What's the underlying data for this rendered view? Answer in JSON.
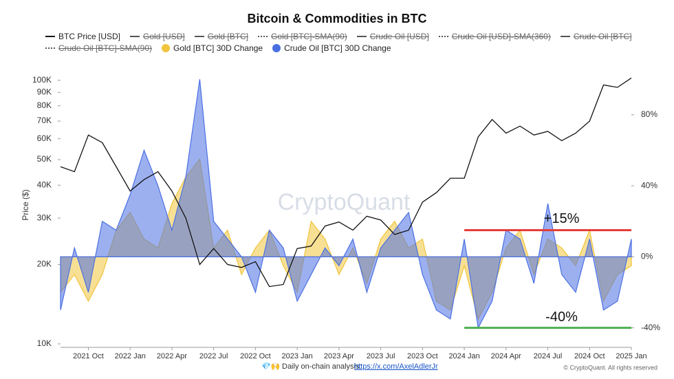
{
  "chart_data": {
    "type": "line",
    "title": "Bitcoin & Commodities in BTC",
    "y_label": "Price ($)",
    "watermark": "CryptoQuant",
    "footer_icon": "💎🙌",
    "footer_text": "Daily on-chain analysis:",
    "footer_link": "https://x.com/AxelAdlerJr",
    "copyright": "© CryptoQuant. All rights reserved",
    "x": [
      "2021-08",
      "2021-09",
      "2021-10",
      "2021-11",
      "2021-12",
      "2022-01",
      "2022-02",
      "2022-03",
      "2022-04",
      "2022-05",
      "2022-06",
      "2022-07",
      "2022-08",
      "2022-09",
      "2022-10",
      "2022-11",
      "2022-12",
      "2023-01",
      "2023-02",
      "2023-03",
      "2023-04",
      "2023-05",
      "2023-06",
      "2023-07",
      "2023-08",
      "2023-09",
      "2023-10",
      "2023-11",
      "2023-12",
      "2024-01",
      "2024-02",
      "2024-03",
      "2024-04",
      "2024-05",
      "2024-06",
      "2024-07",
      "2024-08",
      "2024-09",
      "2024-10",
      "2024-11",
      "2024-12",
      "2025-01"
    ],
    "xlim": [
      "2021-08",
      "2025-01"
    ],
    "xticks": [
      {
        "value": "2021-10",
        "label": "2021 Oct"
      },
      {
        "value": "2022-01",
        "label": "2022 Jan"
      },
      {
        "value": "2022-04",
        "label": "2022 Apr"
      },
      {
        "value": "2022-07",
        "label": "2022 Jul"
      },
      {
        "value": "2022-10",
        "label": "2022 Oct"
      },
      {
        "value": "2023-01",
        "label": "2023 Jan"
      },
      {
        "value": "2023-04",
        "label": "2023 Apr"
      },
      {
        "value": "2023-07",
        "label": "2023 Jul"
      },
      {
        "value": "2023-10",
        "label": "2023 Oct"
      },
      {
        "value": "2024-01",
        "label": "2024 Jan"
      },
      {
        "value": "2024-04",
        "label": "2024 Apr"
      },
      {
        "value": "2024-07",
        "label": "2024 Jul"
      },
      {
        "value": "2024-10",
        "label": "2024 Oct"
      },
      {
        "value": "2025-01",
        "label": "2025 Jan"
      }
    ],
    "y_scale": "log",
    "ylim": [
      9700,
      116000
    ],
    "yticks": [
      {
        "value": 10000,
        "label": "10K"
      },
      {
        "value": 20000,
        "label": "20K"
      },
      {
        "value": 30000,
        "label": "30K"
      },
      {
        "value": 40000,
        "label": "40K"
      },
      {
        "value": 50000,
        "label": "50K"
      },
      {
        "value": 60000,
        "label": "60K"
      },
      {
        "value": 70000,
        "label": "70K"
      },
      {
        "value": 80000,
        "label": "80K"
      },
      {
        "value": 90000,
        "label": "90K"
      },
      {
        "value": 100000,
        "label": "100K"
      }
    ],
    "y2lim": [
      -51,
      109
    ],
    "y2ticks": [
      {
        "value": -40,
        "label": "-40%"
      },
      {
        "value": 0,
        "label": "0%"
      },
      {
        "value": 40,
        "label": "40%"
      },
      {
        "value": 80,
        "label": "80%"
      }
    ],
    "series": [
      {
        "name": "BTC Price [USD]",
        "type": "line",
        "color": "#111111",
        "values": [
          47000,
          45000,
          62000,
          58000,
          47000,
          38000,
          42000,
          45000,
          38000,
          30000,
          20000,
          23000,
          20000,
          19500,
          20500,
          16500,
          16800,
          23000,
          23500,
          28000,
          29000,
          27000,
          30500,
          29500,
          26000,
          27000,
          34500,
          37500,
          42500,
          42500,
          61000,
          71000,
          63000,
          67000,
          62000,
          64000,
          59000,
          63000,
          70000,
          96000,
          94000,
          102000
        ]
      },
      {
        "name": "Gold [BTC] 30D Change",
        "type": "area",
        "axis": "y2",
        "color": "#f0c43c",
        "values": [
          -20,
          -10,
          -25,
          -10,
          15,
          25,
          10,
          5,
          30,
          45,
          55,
          5,
          15,
          -10,
          5,
          15,
          -5,
          -20,
          20,
          10,
          -10,
          5,
          -15,
          10,
          20,
          5,
          10,
          -25,
          -30,
          -5,
          -35,
          -20,
          5,
          15,
          -10,
          10,
          5,
          -5,
          15,
          -25,
          -10,
          -5
        ]
      },
      {
        "name": "Crude Oil [BTC] 30D Change",
        "type": "area",
        "axis": "y2",
        "color": "#4a6fe3",
        "values": [
          -30,
          5,
          -20,
          20,
          15,
          35,
          60,
          40,
          15,
          45,
          100,
          20,
          10,
          0,
          -20,
          15,
          5,
          -25,
          -10,
          5,
          -5,
          10,
          -20,
          5,
          15,
          25,
          -10,
          -30,
          -35,
          10,
          -40,
          -25,
          15,
          10,
          -15,
          30,
          -10,
          -20,
          10,
          -30,
          -25,
          10
        ]
      }
    ],
    "hidden_series": [
      {
        "name": "Gold [USD]",
        "dash": "solid"
      },
      {
        "name": "Gold [BTC]",
        "dash": "solid"
      },
      {
        "name": "Gold [BTC]-SMA(90)",
        "dash": "dotted"
      },
      {
        "name": "Crude Oil [USD]",
        "dash": "solid"
      },
      {
        "name": "Crude Oil [USD]-SMA(360)",
        "dash": "dotted"
      },
      {
        "name": "Crude Oil [BTC]",
        "dash": "solid"
      },
      {
        "name": "Crude Oil [BTC]-SMA(90)",
        "dash": "dotted"
      }
    ],
    "annotations": [
      {
        "text": "+15%",
        "value": 15,
        "color": "#e53935",
        "from": "2024-01",
        "to": "2025-01"
      },
      {
        "text": "-40%",
        "value": -40,
        "color": "#4caf50",
        "from": "2024-01",
        "to": "2025-01"
      }
    ]
  }
}
